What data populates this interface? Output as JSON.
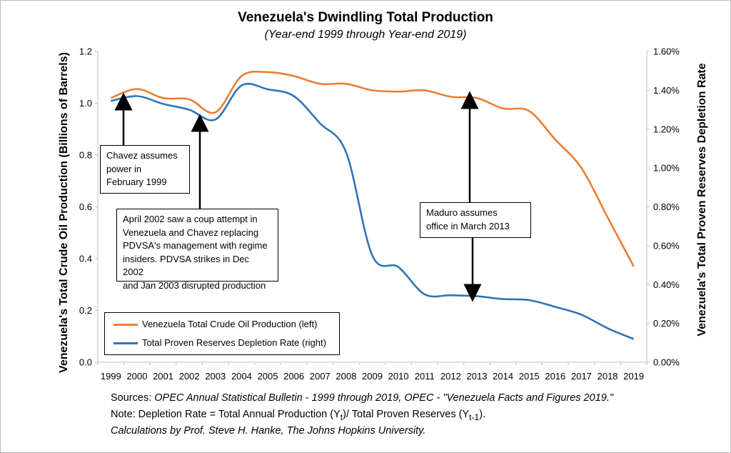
{
  "title": "Venezuela's Dwindling Total Production",
  "subtitle": "(Year-end 1999 through Year-end 2019)",
  "footer": {
    "sources_prefix": "Sources: ",
    "sources_text": "OPEC Annual Statistical Bulletin - 1999 through 2019, OPEC - \"Venezuela Facts and Figures 2019.\"",
    "note_prefix": "Note: Depletion Rate = Total Annual Production (Y",
    "note_sub1": "t",
    "note_mid": ")/ Total Proven Reserves (Y",
    "note_sub2": "t-1",
    "note_suffix": ").",
    "credit": "Calculations by Prof. Steve H. Hanke, The Johns Hopkins University."
  },
  "annotations": {
    "chavez": [
      "Chavez assumes",
      "power in",
      "February 1999"
    ],
    "coup": [
      "April 2002 saw a coup attempt in",
      "Venezuela and Chavez replacing",
      "PDVSA's management with regime",
      "insiders. PDVSA strikes in Dec 2002",
      "and Jan 2003 disrupted production"
    ],
    "maduro": [
      "Maduro assumes",
      "office in March 2013"
    ]
  },
  "colors": {
    "production": "#ED7D31",
    "depletion": "#2E75B6",
    "axis": "#bfbfbf"
  },
  "chart_data": {
    "type": "line",
    "categories": [
      "1999",
      "2000",
      "2001",
      "2002",
      "2003",
      "2004",
      "2005",
      "2006",
      "2007",
      "2008",
      "2009",
      "2010",
      "2011",
      "2012",
      "2013",
      "2014",
      "2015",
      "2016",
      "2017",
      "2018",
      "2019"
    ],
    "ylabel": "Venezuela's Total Crude Oil Production (Billions of Barrels)",
    "y2label": "Venezuela's Total Proven Reserves Depletion Rate",
    "ylim": [
      0,
      1.2
    ],
    "y2lim": [
      0,
      1.6
    ],
    "yticks": [
      "0.0",
      "0.2",
      "0.4",
      "0.6",
      "0.8",
      "1.0",
      "1.2"
    ],
    "y2ticks": [
      "0.00%",
      "0.20%",
      "0.40%",
      "0.60%",
      "0.80%",
      "1.00%",
      "1.20%",
      "1.40%",
      "1.60%"
    ],
    "series": [
      {
        "name": "Venezuela Total Crude Oil Production (left)",
        "axis": "left",
        "values": [
          1.02,
          1.055,
          1.02,
          1.015,
          0.965,
          1.105,
          1.12,
          1.105,
          1.075,
          1.075,
          1.05,
          1.045,
          1.05,
          1.025,
          1.02,
          0.98,
          0.97,
          0.86,
          0.75,
          0.56,
          0.37
        ]
      },
      {
        "name": "Total Proven Reserves Depletion Rate (right)",
        "axis": "right",
        "values": [
          1.345,
          1.37,
          1.33,
          1.3,
          1.25,
          1.425,
          1.405,
          1.37,
          1.23,
          1.08,
          0.55,
          0.49,
          0.35,
          0.345,
          0.34,
          0.325,
          0.32,
          0.285,
          0.245,
          0.175,
          0.12
        ]
      }
    ],
    "legend": "bottom-left",
    "grid": false
  }
}
